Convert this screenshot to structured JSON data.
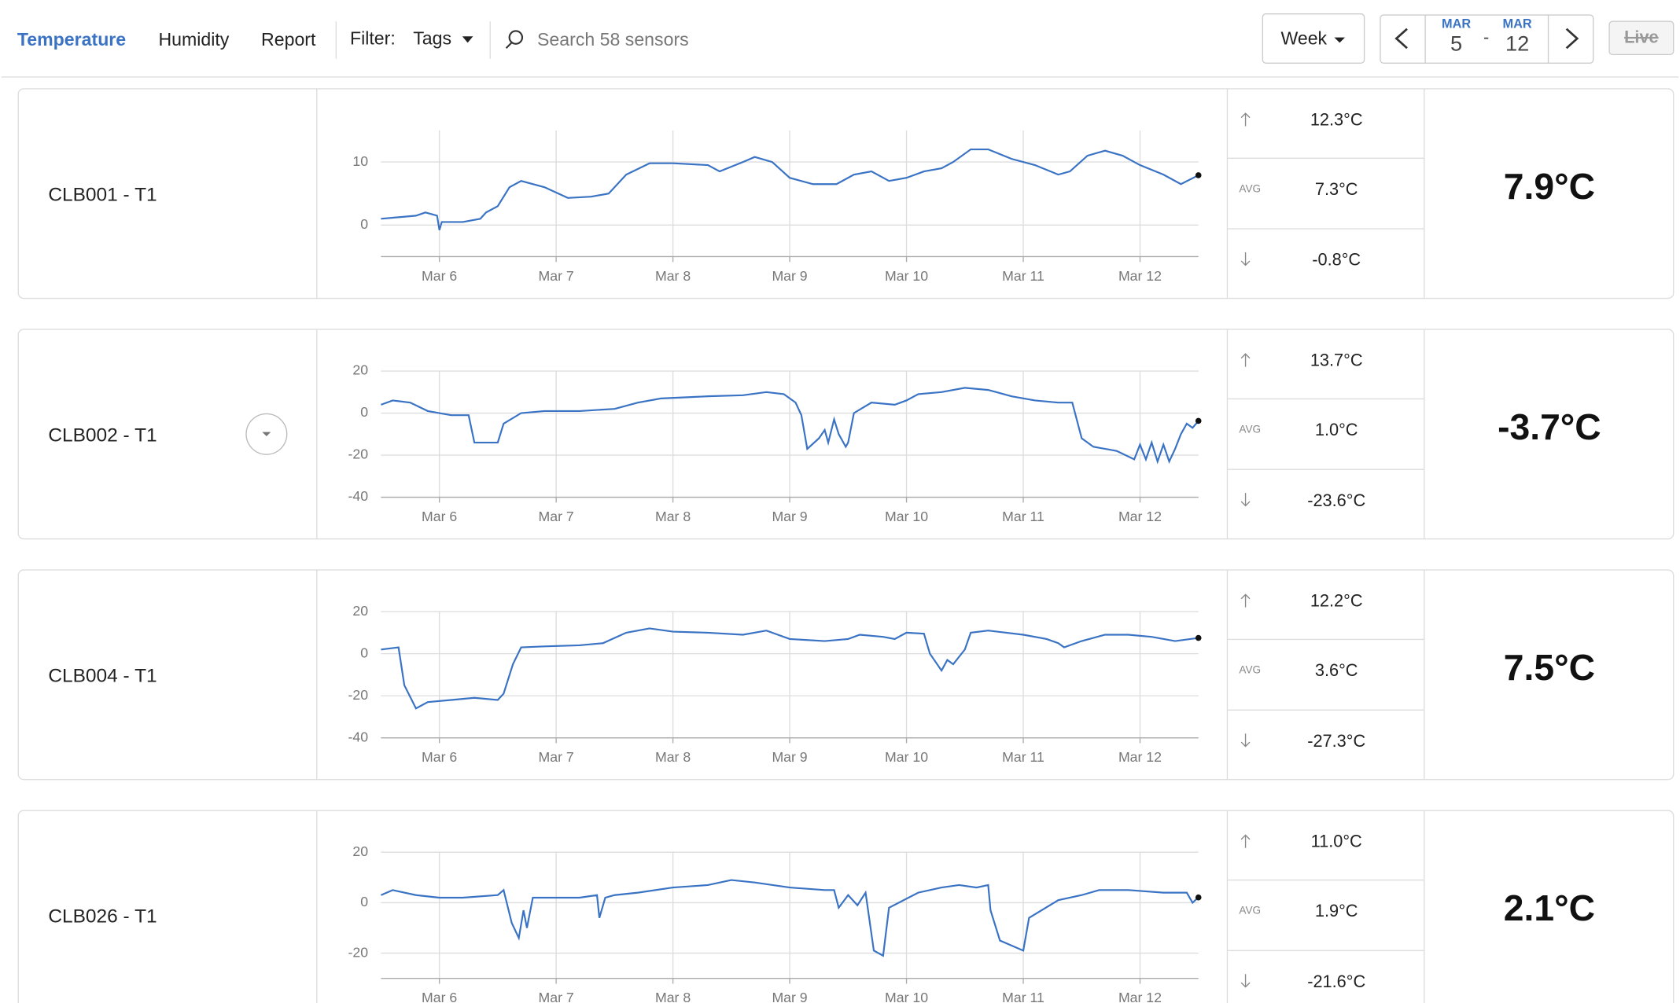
{
  "nav": {
    "tabs": [
      "Temperature",
      "Humidity",
      "Report"
    ],
    "filter_label": "Filter:",
    "filter_value": "Tags",
    "search_placeholder": "Search 58 sensors",
    "range": "Week",
    "start_month": "MAR",
    "start_day": "5",
    "separator": "-",
    "end_month": "MAR",
    "end_day": "12",
    "live": "Live"
  },
  "stats_label_avg": "AVG",
  "sensors": [
    {
      "name": "CLB001 - T1",
      "max": "12.3°C",
      "avg": "7.3°C",
      "min": "-0.8°C",
      "current": "7.9°C"
    },
    {
      "name": "CLB002 - T1",
      "max": "13.7°C",
      "avg": "1.0°C",
      "min": "-23.6°C",
      "current": "-3.7°C"
    },
    {
      "name": "CLB004 - T1",
      "max": "12.2°C",
      "avg": "3.6°C",
      "min": "-27.3°C",
      "current": "7.5°C"
    },
    {
      "name": "CLB026 - T1",
      "max": "11.0°C",
      "avg": "1.9°C",
      "min": "-21.6°C",
      "current": "2.1°C"
    }
  ],
  "chart_data": [
    {
      "type": "line",
      "color": "#3a73c4",
      "grid": true,
      "x": [
        5.5,
        5.8,
        5.88,
        5.98,
        6.0,
        6.02,
        6.2,
        6.35,
        6.4,
        6.5,
        6.6,
        6.7,
        6.9,
        7.1,
        7.3,
        7.45,
        7.6,
        7.8,
        8.0,
        8.3,
        8.4,
        8.6,
        8.7,
        8.85,
        9.0,
        9.2,
        9.4,
        9.55,
        9.7,
        9.85,
        10.0,
        10.15,
        10.3,
        10.4,
        10.55,
        10.7,
        10.9,
        11.1,
        11.3,
        11.4,
        11.55,
        11.7,
        11.85,
        12.0,
        12.2,
        12.35,
        12.5
      ],
      "values": [
        1,
        1.5,
        2,
        1.5,
        -0.8,
        0.5,
        0.5,
        1,
        2,
        3,
        6,
        7,
        6,
        4.3,
        4.5,
        5,
        8,
        9.8,
        9.8,
        9.5,
        8.5,
        10,
        10.8,
        10,
        7.5,
        6.5,
        6.5,
        8,
        8.5,
        7,
        7.5,
        8.5,
        9,
        10,
        12,
        12,
        10.5,
        9.5,
        8,
        8.5,
        11,
        11.8,
        11,
        9.5,
        8,
        6.5,
        7.9
      ],
      "xlim": [
        5.5,
        12.5
      ],
      "ylim": [
        -5,
        15
      ],
      "yticks": [
        0,
        10
      ],
      "xticks": [
        {
          "value": 6,
          "label": "Mar 6"
        },
        {
          "value": 7,
          "label": "Mar 7"
        },
        {
          "value": 8,
          "label": "Mar 8"
        },
        {
          "value": 9,
          "label": "Mar 9"
        },
        {
          "value": 10,
          "label": "Mar 10"
        },
        {
          "value": 11,
          "label": "Mar 11"
        },
        {
          "value": 12,
          "label": "Mar 12"
        }
      ]
    },
    {
      "type": "line",
      "color": "#3a73c4",
      "grid": true,
      "x": [
        5.5,
        5.6,
        5.75,
        5.9,
        6.1,
        6.25,
        6.3,
        6.5,
        6.55,
        6.7,
        6.9,
        7.2,
        7.5,
        7.7,
        7.9,
        8.3,
        8.6,
        8.8,
        8.95,
        9.05,
        9.1,
        9.15,
        9.25,
        9.3,
        9.33,
        9.38,
        9.42,
        9.48,
        9.5,
        9.55,
        9.7,
        9.9,
        10.0,
        10.1,
        10.3,
        10.5,
        10.7,
        10.9,
        11.1,
        11.3,
        11.42,
        11.5,
        11.6,
        11.8,
        11.95,
        12.0,
        12.05,
        12.1,
        12.15,
        12.2,
        12.25,
        12.3,
        12.35,
        12.4,
        12.45,
        12.5
      ],
      "values": [
        4,
        6,
        5,
        1,
        -1,
        -1,
        -14,
        -14,
        -5,
        0,
        1,
        1,
        2,
        5,
        7,
        8,
        8.5,
        10,
        9,
        5,
        -1,
        -17,
        -12,
        -8,
        -14,
        -3,
        -10,
        -16,
        -14,
        0,
        5,
        4,
        6,
        9,
        10,
        12,
        11,
        8,
        6,
        5,
        5,
        -12,
        -16,
        -18,
        -22,
        -15,
        -22,
        -14,
        -23,
        -15,
        -23,
        -17,
        -10,
        -5,
        -7,
        -3.7
      ],
      "xlim": [
        5.5,
        12.5
      ],
      "ylim": [
        -40,
        20
      ],
      "yticks": [
        -40,
        -20,
        0,
        20
      ],
      "xticks": [
        {
          "value": 6,
          "label": "Mar 6"
        },
        {
          "value": 7,
          "label": "Mar 7"
        },
        {
          "value": 8,
          "label": "Mar 8"
        },
        {
          "value": 9,
          "label": "Mar 9"
        },
        {
          "value": 10,
          "label": "Mar 10"
        },
        {
          "value": 11,
          "label": "Mar 11"
        },
        {
          "value": 12,
          "label": "Mar 12"
        }
      ]
    },
    {
      "type": "line",
      "color": "#3a73c4",
      "grid": true,
      "x": [
        5.5,
        5.65,
        5.7,
        5.8,
        5.9,
        6.1,
        6.3,
        6.5,
        6.55,
        6.63,
        6.7,
        6.9,
        7.2,
        7.4,
        7.6,
        7.8,
        8.0,
        8.3,
        8.6,
        8.8,
        9.0,
        9.3,
        9.5,
        9.6,
        9.8,
        9.9,
        10.0,
        10.15,
        10.2,
        10.3,
        10.35,
        10.4,
        10.5,
        10.55,
        10.7,
        11.0,
        11.2,
        11.3,
        11.35,
        11.5,
        11.7,
        11.9,
        12.1,
        12.3,
        12.5
      ],
      "values": [
        2,
        3,
        -15,
        -26,
        -23,
        -22,
        -21,
        -22,
        -19,
        -5,
        3,
        3.5,
        4,
        5,
        10,
        12,
        10.5,
        10,
        9,
        11,
        7,
        6,
        7,
        9,
        8,
        7,
        10,
        9.5,
        0,
        -8,
        -3,
        -5,
        2,
        10,
        11,
        9,
        7,
        5,
        3,
        6,
        9,
        9,
        8,
        6,
        7.5
      ],
      "xlim": [
        5.5,
        12.5
      ],
      "ylim": [
        -40,
        20
      ],
      "yticks": [
        -40,
        -20,
        0,
        20
      ],
      "xticks": [
        {
          "value": 6,
          "label": "Mar 6"
        },
        {
          "value": 7,
          "label": "Mar 7"
        },
        {
          "value": 8,
          "label": "Mar 8"
        },
        {
          "value": 9,
          "label": "Mar 9"
        },
        {
          "value": 10,
          "label": "Mar 10"
        },
        {
          "value": 11,
          "label": "Mar 11"
        },
        {
          "value": 12,
          "label": "Mar 12"
        }
      ]
    },
    {
      "type": "line",
      "color": "#3a73c4",
      "grid": true,
      "x": [
        5.5,
        5.6,
        5.8,
        6.0,
        6.2,
        6.5,
        6.55,
        6.62,
        6.68,
        6.72,
        6.75,
        6.8,
        7.2,
        7.35,
        7.37,
        7.42,
        7.5,
        7.7,
        8.0,
        8.3,
        8.5,
        8.7,
        9.0,
        9.3,
        9.38,
        9.42,
        9.5,
        9.58,
        9.65,
        9.72,
        9.8,
        9.85,
        10.1,
        10.3,
        10.45,
        10.6,
        10.7,
        10.72,
        10.8,
        11.0,
        11.05,
        11.3,
        11.5,
        11.65,
        11.9,
        12.2,
        12.4,
        12.45,
        12.5
      ],
      "values": [
        3,
        5,
        3,
        2,
        2,
        3,
        5,
        -8,
        -14,
        -3,
        -10,
        2,
        2,
        3,
        -6,
        2,
        3,
        4,
        6,
        7,
        9,
        8,
        6,
        5,
        5,
        -2,
        3,
        -1,
        4,
        -19,
        -21,
        -2,
        4,
        6,
        7,
        6,
        7,
        -3,
        -15,
        -19,
        -6,
        1,
        3,
        5,
        5,
        4,
        4,
        0,
        2.1
      ],
      "xlim": [
        5.5,
        12.5
      ],
      "ylim": [
        -30,
        20
      ],
      "yticks": [
        -20,
        0,
        20
      ],
      "xticks": [
        {
          "value": 6,
          "label": "Mar 6"
        },
        {
          "value": 7,
          "label": "Mar 7"
        },
        {
          "value": 8,
          "label": "Mar 8"
        },
        {
          "value": 9,
          "label": "Mar 9"
        },
        {
          "value": 10,
          "label": "Mar 10"
        },
        {
          "value": 11,
          "label": "Mar 11"
        },
        {
          "value": 12,
          "label": "Mar 12"
        }
      ]
    }
  ]
}
